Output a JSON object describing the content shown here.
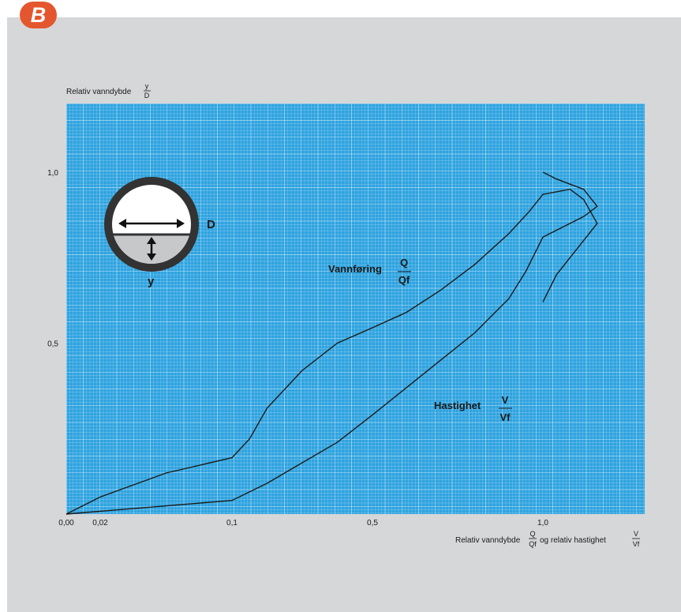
{
  "badge": {
    "letter": "B"
  },
  "colors": {
    "background": "#d6d7d9",
    "grid_fill": "#2ea3df",
    "grid_line": "#9fd3f2",
    "badge": "#e4572e",
    "curve": "#1a1a1a"
  },
  "diagram": {
    "label_D": "D",
    "label_y": "y"
  },
  "chart_data": {
    "type": "line",
    "grid": true,
    "ylabel": "Relativ vanndybde",
    "ylabel_fraction": {
      "num": "y",
      "den": "D"
    },
    "xlabel_prefix": "Relativ vanndybde",
    "xlabel_fraction1": {
      "num": "Q",
      "den": "Qf"
    },
    "xlabel_middle": "og relativ hastighet",
    "xlabel_fraction2": {
      "num": "V",
      "den": "Vf"
    },
    "xlim": [
      0,
      1.075
    ],
    "ylim": [
      0,
      1.2
    ],
    "x_ticks": [
      "0,00",
      "0,02",
      "0,1",
      "0,5",
      "1,0"
    ],
    "x_tick_values": [
      0,
      0.02,
      0.1,
      0.5,
      1.0
    ],
    "y_ticks": [
      "0,5",
      "1,0"
    ],
    "y_tick_values": [
      0.5,
      1.0
    ],
    "series": [
      {
        "name": "Vannføring",
        "fraction": {
          "num": "Q",
          "den": "Qf"
        },
        "x": [
          0.0,
          0.02,
          0.06,
          0.1,
          0.15,
          0.2,
          0.3,
          0.4,
          0.5,
          0.6,
          0.7,
          0.8,
          0.9,
          0.96,
          1.0,
          1.02,
          1.03,
          1.04,
          1.03,
          1.01,
          1.0
        ],
        "y": [
          0.0,
          0.05,
          0.12,
          0.165,
          0.22,
          0.31,
          0.42,
          0.5,
          0.545,
          0.59,
          0.655,
          0.73,
          0.82,
          0.885,
          0.935,
          0.95,
          0.92,
          0.85,
          0.8,
          0.7,
          0.62
        ]
      },
      {
        "name": "Hastighet",
        "fraction": {
          "num": "V",
          "den": "Vf"
        },
        "x": [
          0.0,
          0.1,
          0.2,
          0.3,
          0.4,
          0.5,
          0.6,
          0.7,
          0.8,
          0.9,
          0.95,
          1.0,
          1.02,
          1.03,
          1.04,
          1.03,
          1.01,
          1.0
        ],
        "y": [
          0.0,
          0.04,
          0.09,
          0.15,
          0.21,
          0.29,
          0.37,
          0.45,
          0.53,
          0.63,
          0.71,
          0.81,
          0.85,
          0.87,
          0.9,
          0.95,
          0.98,
          1.0
        ]
      }
    ]
  }
}
